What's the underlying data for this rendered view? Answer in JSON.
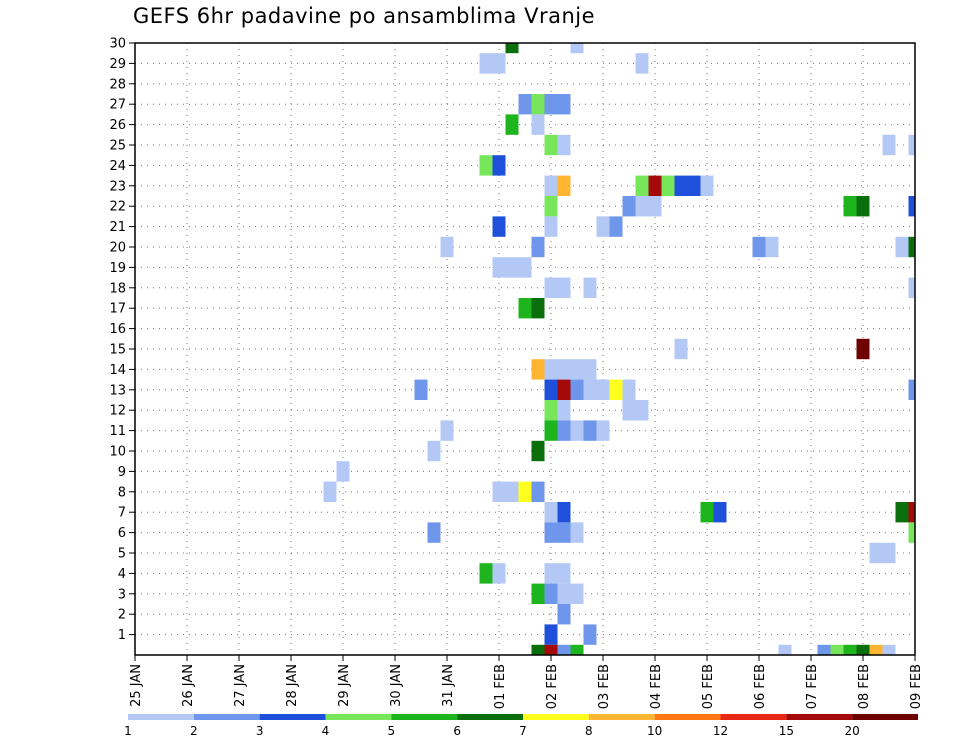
{
  "chart_data": {
    "type": "heatmap",
    "title": "GEFS 6hr padavine po ansamblima Vranje",
    "xlabel": "",
    "ylabel": "",
    "x_ticks": [
      "25 JAN",
      "26 JAN",
      "27 JAN",
      "28 JAN",
      "29 JAN",
      "30 JAN",
      "31 JAN",
      "01 FEB",
      "02 FEB",
      "03 FEB",
      "04 FEB",
      "05 FEB",
      "06 FEB",
      "07 FEB",
      "08 FEB",
      "09 FEB"
    ],
    "x_range": [
      "25 JAN 00Z",
      "09 FEB 00Z"
    ],
    "y_ticks": [
      1,
      2,
      3,
      4,
      5,
      6,
      7,
      8,
      9,
      10,
      11,
      12,
      13,
      14,
      15,
      16,
      17,
      18,
      19,
      20,
      21,
      22,
      23,
      24,
      25,
      26,
      27,
      28,
      29,
      30
    ],
    "y_range": [
      0,
      30
    ],
    "grid": true,
    "legend": {
      "placement": "bottom",
      "levels": [
        "1",
        "2",
        "3",
        "4",
        "5",
        "6",
        "7",
        "8",
        "10",
        "12",
        "15",
        "20"
      ],
      "colors": [
        "#b4c8f5",
        "#6e96ea",
        "#1e50dc",
        "#78e65a",
        "#1eb41e",
        "#0a6e0a",
        "#ffff1e",
        "#ffb432",
        "#ff7814",
        "#e62814",
        "#a50a0a",
        "#6e0000"
      ]
    },
    "cells": [
      {
        "day": "01 FEB",
        "hour": 6,
        "member": 30,
        "value": 6
      },
      {
        "day": "02 FEB",
        "hour": 12,
        "member": 30,
        "value": 1
      },
      {
        "day": "31 JAN",
        "hour": 18,
        "member": 29,
        "value": 1
      },
      {
        "day": "01 FEB",
        "hour": 0,
        "member": 29,
        "value": 1
      },
      {
        "day": "03 FEB",
        "hour": 18,
        "member": 29,
        "value": 1
      },
      {
        "day": "01 FEB",
        "hour": 12,
        "member": 27,
        "value": 2
      },
      {
        "day": "01 FEB",
        "hour": 18,
        "member": 27,
        "value": 4
      },
      {
        "day": "02 FEB",
        "hour": 0,
        "member": 27,
        "value": 2
      },
      {
        "day": "02 FEB",
        "hour": 6,
        "member": 27,
        "value": 2
      },
      {
        "day": "01 FEB",
        "hour": 6,
        "member": 26,
        "value": 5
      },
      {
        "day": "01 FEB",
        "hour": 18,
        "member": 26,
        "value": 1
      },
      {
        "day": "02 FEB",
        "hour": 0,
        "member": 25,
        "value": 4
      },
      {
        "day": "02 FEB",
        "hour": 6,
        "member": 25,
        "value": 1
      },
      {
        "day": "08 FEB",
        "hour": 12,
        "member": 25,
        "value": 1
      },
      {
        "day": "09 FEB",
        "hour": 0,
        "member": 25,
        "value": 1
      },
      {
        "day": "31 JAN",
        "hour": 18,
        "member": 24,
        "value": 4
      },
      {
        "day": "01 FEB",
        "hour": 0,
        "member": 24,
        "value": 3
      },
      {
        "day": "02 FEB",
        "hour": 0,
        "member": 23,
        "value": 1
      },
      {
        "day": "02 FEB",
        "hour": 6,
        "member": 23,
        "value": 8
      },
      {
        "day": "03 FEB",
        "hour": 18,
        "member": 23,
        "value": 4
      },
      {
        "day": "04 FEB",
        "hour": 0,
        "member": 23,
        "value": 15
      },
      {
        "day": "04 FEB",
        "hour": 6,
        "member": 23,
        "value": 4
      },
      {
        "day": "04 FEB",
        "hour": 12,
        "member": 23,
        "value": 3
      },
      {
        "day": "04 FEB",
        "hour": 18,
        "member": 23,
        "value": 3
      },
      {
        "day": "05 FEB",
        "hour": 0,
        "member": 23,
        "value": 1
      },
      {
        "day": "02 FEB",
        "hour": 0,
        "member": 22,
        "value": 4
      },
      {
        "day": "03 FEB",
        "hour": 12,
        "member": 22,
        "value": 2
      },
      {
        "day": "03 FEB",
        "hour": 18,
        "member": 22,
        "value": 1
      },
      {
        "day": "04 FEB",
        "hour": 0,
        "member": 22,
        "value": 1
      },
      {
        "day": "07 FEB",
        "hour": 18,
        "member": 22,
        "value": 5
      },
      {
        "day": "08 FEB",
        "hour": 0,
        "member": 22,
        "value": 6
      },
      {
        "day": "09 FEB",
        "hour": 0,
        "member": 22,
        "value": 3
      },
      {
        "day": "01 FEB",
        "hour": 0,
        "member": 21,
        "value": 3
      },
      {
        "day": "02 FEB",
        "hour": 0,
        "member": 21,
        "value": 1
      },
      {
        "day": "03 FEB",
        "hour": 0,
        "member": 21,
        "value": 1
      },
      {
        "day": "03 FEB",
        "hour": 6,
        "member": 21,
        "value": 2
      },
      {
        "day": "31 JAN",
        "hour": 0,
        "member": 20,
        "value": 1
      },
      {
        "day": "01 FEB",
        "hour": 18,
        "member": 20,
        "value": 2
      },
      {
        "day": "06 FEB",
        "hour": 0,
        "member": 20,
        "value": 2
      },
      {
        "day": "06 FEB",
        "hour": 6,
        "member": 20,
        "value": 1
      },
      {
        "day": "08 FEB",
        "hour": 18,
        "member": 20,
        "value": 1
      },
      {
        "day": "09 FEB",
        "hour": 0,
        "member": 20,
        "value": 6
      },
      {
        "day": "01 FEB",
        "hour": 0,
        "member": 19,
        "value": 1
      },
      {
        "day": "01 FEB",
        "hour": 6,
        "member": 19,
        "value": 1
      },
      {
        "day": "01 FEB",
        "hour": 12,
        "member": 19,
        "value": 1
      },
      {
        "day": "02 FEB",
        "hour": 0,
        "member": 18,
        "value": 1
      },
      {
        "day": "02 FEB",
        "hour": 6,
        "member": 18,
        "value": 1
      },
      {
        "day": "02 FEB",
        "hour": 18,
        "member": 18,
        "value": 1
      },
      {
        "day": "09 FEB",
        "hour": 0,
        "member": 18,
        "value": 1
      },
      {
        "day": "01 FEB",
        "hour": 12,
        "member": 17,
        "value": 5
      },
      {
        "day": "01 FEB",
        "hour": 18,
        "member": 17,
        "value": 6
      },
      {
        "day": "04 FEB",
        "hour": 12,
        "member": 15,
        "value": 1
      },
      {
        "day": "08 FEB",
        "hour": 0,
        "member": 15,
        "value": 20
      },
      {
        "day": "01 FEB",
        "hour": 18,
        "member": 14,
        "value": 8
      },
      {
        "day": "02 FEB",
        "hour": 0,
        "member": 14,
        "value": 1
      },
      {
        "day": "02 FEB",
        "hour": 6,
        "member": 14,
        "value": 1
      },
      {
        "day": "02 FEB",
        "hour": 12,
        "member": 14,
        "value": 1
      },
      {
        "day": "02 FEB",
        "hour": 18,
        "member": 14,
        "value": 1
      },
      {
        "day": "30 JAN",
        "hour": 12,
        "member": 13,
        "value": 2
      },
      {
        "day": "02 FEB",
        "hour": 0,
        "member": 13,
        "value": 3
      },
      {
        "day": "02 FEB",
        "hour": 6,
        "member": 13,
        "value": 15
      },
      {
        "day": "02 FEB",
        "hour": 12,
        "member": 13,
        "value": 2
      },
      {
        "day": "02 FEB",
        "hour": 18,
        "member": 13,
        "value": 1
      },
      {
        "day": "03 FEB",
        "hour": 0,
        "member": 13,
        "value": 1
      },
      {
        "day": "03 FEB",
        "hour": 6,
        "member": 13,
        "value": 7
      },
      {
        "day": "03 FEB",
        "hour": 12,
        "member": 13,
        "value": 1
      },
      {
        "day": "09 FEB",
        "hour": 0,
        "member": 13,
        "value": 2
      },
      {
        "day": "02 FEB",
        "hour": 0,
        "member": 12,
        "value": 4
      },
      {
        "day": "02 FEB",
        "hour": 6,
        "member": 12,
        "value": 1
      },
      {
        "day": "03 FEB",
        "hour": 12,
        "member": 12,
        "value": 1
      },
      {
        "day": "03 FEB",
        "hour": 18,
        "member": 12,
        "value": 1
      },
      {
        "day": "31 JAN",
        "hour": 0,
        "member": 11,
        "value": 1
      },
      {
        "day": "02 FEB",
        "hour": 0,
        "member": 11,
        "value": 5
      },
      {
        "day": "02 FEB",
        "hour": 6,
        "member": 11,
        "value": 2
      },
      {
        "day": "02 FEB",
        "hour": 12,
        "member": 11,
        "value": 1
      },
      {
        "day": "02 FEB",
        "hour": 18,
        "member": 11,
        "value": 2
      },
      {
        "day": "03 FEB",
        "hour": 0,
        "member": 11,
        "value": 1
      },
      {
        "day": "30 JAN",
        "hour": 18,
        "member": 10,
        "value": 1
      },
      {
        "day": "01 FEB",
        "hour": 18,
        "member": 10,
        "value": 6
      },
      {
        "day": "29 JAN",
        "hour": 0,
        "member": 9,
        "value": 1
      },
      {
        "day": "28 JAN",
        "hour": 18,
        "member": 8,
        "value": 1
      },
      {
        "day": "01 FEB",
        "hour": 0,
        "member": 8,
        "value": 1
      },
      {
        "day": "01 FEB",
        "hour": 6,
        "member": 8,
        "value": 1
      },
      {
        "day": "01 FEB",
        "hour": 12,
        "member": 8,
        "value": 7
      },
      {
        "day": "01 FEB",
        "hour": 18,
        "member": 8,
        "value": 2
      },
      {
        "day": "02 FEB",
        "hour": 0,
        "member": 7,
        "value": 1
      },
      {
        "day": "02 FEB",
        "hour": 6,
        "member": 7,
        "value": 3
      },
      {
        "day": "05 FEB",
        "hour": 0,
        "member": 7,
        "value": 5
      },
      {
        "day": "05 FEB",
        "hour": 6,
        "member": 7,
        "value": 3
      },
      {
        "day": "08 FEB",
        "hour": 18,
        "member": 7,
        "value": 6
      },
      {
        "day": "09 FEB",
        "hour": 0,
        "member": 7,
        "value": 15
      },
      {
        "day": "30 JAN",
        "hour": 18,
        "member": 6,
        "value": 2
      },
      {
        "day": "02 FEB",
        "hour": 0,
        "member": 6,
        "value": 2
      },
      {
        "day": "02 FEB",
        "hour": 6,
        "member": 6,
        "value": 2
      },
      {
        "day": "02 FEB",
        "hour": 12,
        "member": 6,
        "value": 1
      },
      {
        "day": "09 FEB",
        "hour": 0,
        "member": 6,
        "value": 4
      },
      {
        "day": "08 FEB",
        "hour": 6,
        "member": 5,
        "value": 1
      },
      {
        "day": "08 FEB",
        "hour": 12,
        "member": 5,
        "value": 1
      },
      {
        "day": "31 JAN",
        "hour": 18,
        "member": 4,
        "value": 5
      },
      {
        "day": "01 FEB",
        "hour": 0,
        "member": 4,
        "value": 1
      },
      {
        "day": "02 FEB",
        "hour": 0,
        "member": 4,
        "value": 1
      },
      {
        "day": "02 FEB",
        "hour": 6,
        "member": 4,
        "value": 1
      },
      {
        "day": "01 FEB",
        "hour": 18,
        "member": 3,
        "value": 5
      },
      {
        "day": "02 FEB",
        "hour": 0,
        "member": 3,
        "value": 2
      },
      {
        "day": "02 FEB",
        "hour": 6,
        "member": 3,
        "value": 1
      },
      {
        "day": "02 FEB",
        "hour": 12,
        "member": 3,
        "value": 1
      },
      {
        "day": "02 FEB",
        "hour": 6,
        "member": 2,
        "value": 2
      },
      {
        "day": "02 FEB",
        "hour": 0,
        "member": 1,
        "value": 3
      },
      {
        "day": "02 FEB",
        "hour": 18,
        "member": 1,
        "value": 2
      },
      {
        "day": "01 FEB",
        "hour": 18,
        "member": 0,
        "value": 6
      },
      {
        "day": "02 FEB",
        "hour": 0,
        "member": 0,
        "value": 15
      },
      {
        "day": "02 FEB",
        "hour": 6,
        "member": 0,
        "value": 2
      },
      {
        "day": "02 FEB",
        "hour": 12,
        "member": 0,
        "value": 5
      },
      {
        "day": "06 FEB",
        "hour": 12,
        "member": 0,
        "value": 1
      },
      {
        "day": "07 FEB",
        "hour": 6,
        "member": 0,
        "value": 2
      },
      {
        "day": "07 FEB",
        "hour": 12,
        "member": 0,
        "value": 4
      },
      {
        "day": "07 FEB",
        "hour": 18,
        "member": 0,
        "value": 5
      },
      {
        "day": "08 FEB",
        "hour": 0,
        "member": 0,
        "value": 6
      },
      {
        "day": "08 FEB",
        "hour": 6,
        "member": 0,
        "value": 8
      },
      {
        "day": "08 FEB",
        "hour": 12,
        "member": 0,
        "value": 1
      }
    ]
  }
}
